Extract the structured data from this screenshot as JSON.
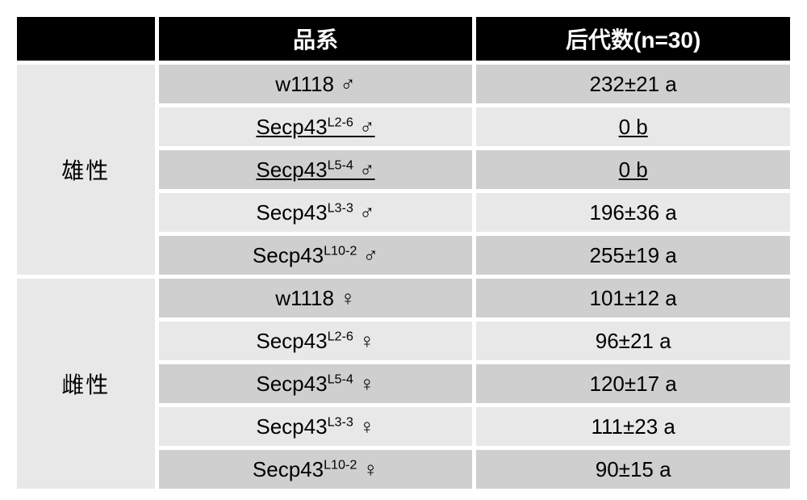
{
  "header": {
    "h0": "",
    "h1": "品系",
    "h2": "后代数(n=30)"
  },
  "groups": [
    {
      "label": "雄性",
      "rows": [
        {
          "line_pre": "w1118 ",
          "sup": "",
          "glyph": "♂",
          "offspring": "232±21 a",
          "underline": false
        },
        {
          "line_pre": "Secp43",
          "sup": "L2-6",
          "glyph": " ♂",
          "offspring": "0 b",
          "underline": true
        },
        {
          "line_pre": "Secp43",
          "sup": "L5-4",
          "glyph": " ♂",
          "offspring": "0 b",
          "underline": true
        },
        {
          "line_pre": "Secp43",
          "sup": "L3-3",
          "glyph": " ♂",
          "offspring": "196±36 a",
          "underline": false
        },
        {
          "line_pre": "Secp43",
          "sup": "L10-2",
          "glyph": " ♂",
          "offspring": "255±19 a",
          "underline": false
        }
      ]
    },
    {
      "label": "雌性",
      "rows": [
        {
          "line_pre": "w1118 ",
          "sup": "",
          "glyph": "♀",
          "offspring": "101±12 a",
          "underline": false
        },
        {
          "line_pre": "Secp43",
          "sup": "L2-6",
          "glyph": " ♀",
          "offspring": "96±21 a",
          "underline": false
        },
        {
          "line_pre": "Secp43",
          "sup": "L5-4",
          "glyph": " ♀",
          "offspring": "120±17 a",
          "underline": false
        },
        {
          "line_pre": "Secp43",
          "sup": "L3-3",
          "glyph": " ♀",
          "offspring": "111±23 a",
          "underline": false
        },
        {
          "line_pre": "Secp43",
          "sup": "L10-2",
          "glyph": " ♀",
          "offspring": "90±15 a",
          "underline": false
        }
      ]
    }
  ],
  "colors": {
    "header_bg": "#000000",
    "header_fg": "#ffffff",
    "row_dark": "#cfcfcf",
    "row_light": "#e8e8e8",
    "border_gap": "#ffffff"
  }
}
